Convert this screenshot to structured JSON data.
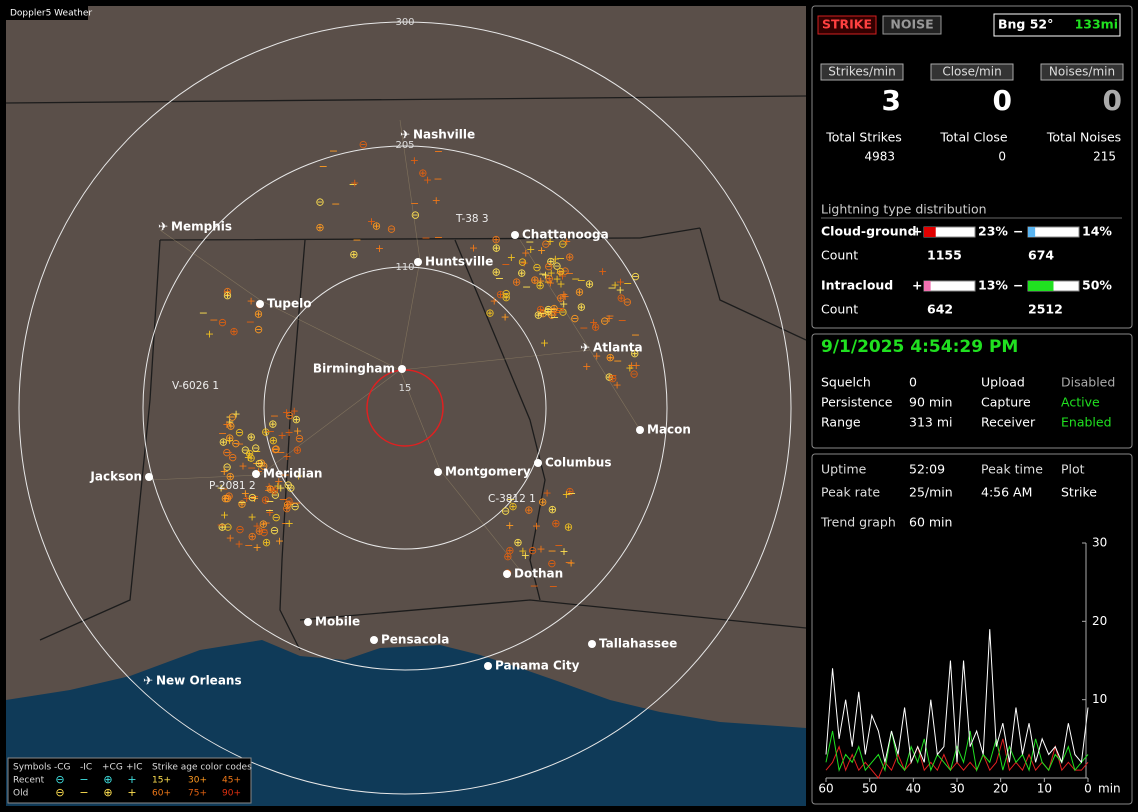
{
  "map": {
    "title": "Doppler5 Weather",
    "range_rings": [
      "300",
      "205",
      "110",
      "15"
    ],
    "cities": [
      "Nashville",
      "Memphis",
      "Chattanooga",
      "Huntsville",
      "Tupelo",
      "Atlanta",
      "Birmingham",
      "Macon",
      "Jackson",
      "Meridian",
      "Montgomery",
      "Columbus",
      "Dothan",
      "Mobile",
      "Pensacola",
      "Tallahassee",
      "Panama City",
      "New Orleans"
    ],
    "stations": [
      "T-38 3",
      "V-6026 1",
      "P-2081 2",
      "C-3812 1"
    ],
    "legend": {
      "symbols_label": "Symbols",
      "types": [
        "-CG",
        "-IC",
        "+CG",
        "+IC"
      ],
      "age_label": "Strike age color codes",
      "rows": [
        "Recent",
        "Old"
      ],
      "ages": [
        [
          "15+",
          "30+",
          "45+"
        ],
        [
          "60+",
          "75+",
          "90+"
        ]
      ]
    }
  },
  "panel": {
    "modes": [
      "STRIKE",
      "NOISE"
    ],
    "bearing": "Bng 52°",
    "distance": "133mi",
    "rates": [
      {
        "label": "Strikes/min",
        "value": 3,
        "total_label": "Total Strikes",
        "total": 4983
      },
      {
        "label": "Close/min",
        "value": 0,
        "total_label": "Total Close",
        "total": 0
      },
      {
        "label": "Noises/min",
        "value": 0,
        "total_label": "Total Noises",
        "total": 215
      }
    ],
    "distribution": {
      "title": "Lightning type distribution",
      "count_label": "Count",
      "rows": [
        {
          "name": "Cloud-ground",
          "items": [
            {
              "sign": "+",
              "value": 23,
              "label": "23%",
              "count": 1155,
              "color": "#e00000"
            },
            {
              "sign": "−",
              "value": 14,
              "label": "14%",
              "count": 674,
              "color": "#5ab4f0"
            }
          ]
        },
        {
          "name": "Intracloud",
          "items": [
            {
              "sign": "+",
              "value": 13,
              "label": "13%",
              "count": 642,
              "color": "#f070b0"
            },
            {
              "sign": "−",
              "value": 50,
              "label": "50%",
              "count": 2512,
              "color": "#20e020"
            }
          ]
        }
      ]
    },
    "datetime": "9/1/2025 4:54:29 PM",
    "settings": [
      [
        "Squelch",
        "0",
        "Upload",
        "Disabled"
      ],
      [
        "Persistence",
        "90 min",
        "Capture",
        "Active"
      ],
      [
        "Range",
        "313 mi",
        "Receiver",
        "Enabled"
      ]
    ],
    "stats": [
      [
        "Uptime",
        "52:09"
      ],
      [
        "Peak time",
        "4:56 AM"
      ],
      [
        "Plot",
        "Strike"
      ],
      [
        "Peak rate",
        "25/min"
      ],
      [
        "Trend graph",
        "60 min"
      ]
    ],
    "trend": {
      "xlim": [
        60,
        0
      ],
      "xticks": [
        60,
        50,
        40,
        30,
        20,
        10,
        0
      ],
      "x_unit": "min",
      "ylim": [
        0,
        30
      ],
      "yticks": [
        30,
        20,
        10
      ],
      "x": [
        60,
        58.5,
        57,
        55.5,
        54,
        52.5,
        51,
        49.5,
        48,
        46.5,
        45,
        43.5,
        42,
        40.5,
        39,
        37.5,
        36,
        34.5,
        33,
        31.5,
        30,
        28.5,
        27,
        25.5,
        24,
        22.5,
        21,
        19.5,
        18,
        16.5,
        15,
        13.5,
        12,
        10.5,
        9,
        7.5,
        6,
        4.5,
        3,
        1.5,
        0
      ],
      "series": [
        {
          "color": "#ffffff",
          "values": [
            3,
            14,
            5,
            10,
            4,
            11,
            3,
            8,
            6,
            2,
            6,
            3,
            9,
            2,
            4,
            2,
            10,
            3,
            4,
            15,
            2,
            15,
            4,
            6,
            3,
            19,
            4,
            7,
            2,
            9,
            3,
            7,
            2,
            5,
            3,
            4,
            2,
            7,
            3,
            2,
            9
          ]
        },
        {
          "color": "#20e020",
          "values": [
            2,
            6,
            1,
            3,
            2,
            4,
            1,
            2,
            3,
            1,
            6,
            2,
            1,
            4,
            2,
            5,
            1,
            3,
            2,
            1,
            4,
            2,
            6,
            1,
            3,
            2,
            5,
            1,
            4,
            2,
            3,
            1,
            5,
            2,
            1,
            3,
            2,
            4,
            1,
            2,
            3
          ]
        },
        {
          "color": "#e02020",
          "values": [
            1,
            2,
            4,
            1,
            3,
            1,
            2,
            1,
            0,
            2,
            1,
            3,
            1,
            2,
            4,
            1,
            2,
            1,
            3,
            1,
            2,
            1,
            2,
            1,
            3,
            1,
            2,
            5,
            1,
            2,
            1,
            3,
            1,
            2,
            1,
            4,
            1,
            2,
            1,
            1,
            2
          ]
        }
      ]
    }
  }
}
